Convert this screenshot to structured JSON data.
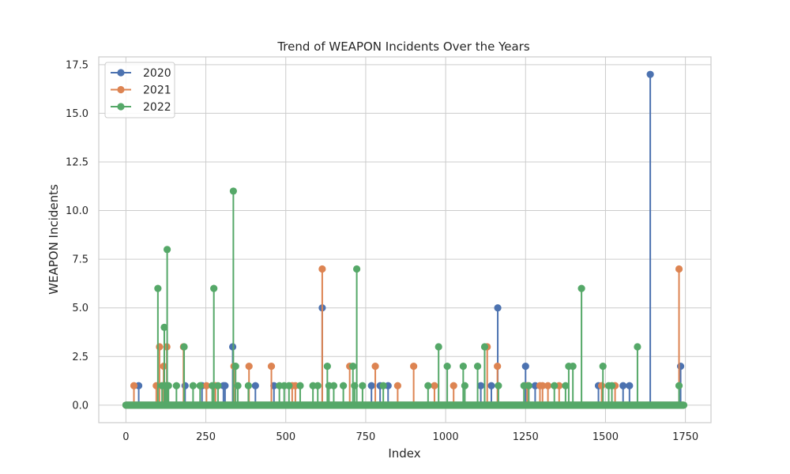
{
  "chart_data": {
    "type": "stem",
    "title": "Trend of WEAPON Incidents Over the Years",
    "xlabel": "Index",
    "ylabel": "WEAPON Incidents",
    "xlim": [
      -85,
      1830
    ],
    "ylim": [
      -0.9,
      17.9
    ],
    "xticks": [
      0,
      250,
      500,
      750,
      1000,
      1250,
      1500,
      1750
    ],
    "yticks": [
      0.0,
      2.5,
      5.0,
      7.5,
      10.0,
      12.5,
      15.0,
      17.5
    ],
    "ytick_labels": [
      "0.0",
      "2.5",
      "5.0",
      "7.5",
      "10.0",
      "12.5",
      "15.0",
      "17.5"
    ],
    "grid": true,
    "legend_position": "top-left",
    "x_range": [
      0,
      1745
    ],
    "baseline_value": 0,
    "series": [
      {
        "name": "2020",
        "color": "#4c72b0",
        "points": [
          [
            40,
            1
          ],
          [
            185,
            1
          ],
          [
            238,
            1
          ],
          [
            305,
            1
          ],
          [
            310,
            1
          ],
          [
            334,
            3
          ],
          [
            405,
            1
          ],
          [
            463,
            1
          ],
          [
            614,
            5
          ],
          [
            768,
            1
          ],
          [
            795,
            1
          ],
          [
            820,
            1
          ],
          [
            1110,
            1
          ],
          [
            1143,
            1
          ],
          [
            1163,
            5
          ],
          [
            1250,
            2
          ],
          [
            1280,
            1
          ],
          [
            1478,
            1
          ],
          [
            1555,
            1
          ],
          [
            1575,
            1
          ],
          [
            1640,
            17
          ],
          [
            1735,
            2
          ]
        ]
      },
      {
        "name": "2021",
        "color": "#dd8452",
        "points": [
          [
            25,
            1
          ],
          [
            95,
            1
          ],
          [
            105,
            3
          ],
          [
            118,
            2
          ],
          [
            128,
            3
          ],
          [
            180,
            3
          ],
          [
            252,
            1
          ],
          [
            280,
            1
          ],
          [
            338,
            2
          ],
          [
            385,
            2
          ],
          [
            455,
            2
          ],
          [
            520,
            1
          ],
          [
            530,
            1
          ],
          [
            614,
            7
          ],
          [
            700,
            2
          ],
          [
            780,
            2
          ],
          [
            850,
            1
          ],
          [
            900,
            2
          ],
          [
            965,
            1
          ],
          [
            1025,
            1
          ],
          [
            1130,
            3
          ],
          [
            1162,
            2
          ],
          [
            1255,
            1
          ],
          [
            1295,
            1
          ],
          [
            1303,
            1
          ],
          [
            1320,
            1
          ],
          [
            1355,
            1
          ],
          [
            1488,
            1
          ],
          [
            1530,
            1
          ],
          [
            1730,
            7
          ]
        ]
      },
      {
        "name": "2022",
        "color": "#55a868",
        "points": [
          [
            100,
            6
          ],
          [
            113,
            1
          ],
          [
            120,
            4
          ],
          [
            124,
            1
          ],
          [
            129,
            8
          ],
          [
            133,
            1
          ],
          [
            158,
            1
          ],
          [
            182,
            3
          ],
          [
            210,
            1
          ],
          [
            232,
            1
          ],
          [
            270,
            1
          ],
          [
            275,
            6
          ],
          [
            288,
            1
          ],
          [
            336,
            11
          ],
          [
            343,
            2
          ],
          [
            350,
            1
          ],
          [
            383,
            1
          ],
          [
            480,
            1
          ],
          [
            495,
            1
          ],
          [
            510,
            1
          ],
          [
            545,
            1
          ],
          [
            585,
            1
          ],
          [
            600,
            1
          ],
          [
            630,
            2
          ],
          [
            635,
            1
          ],
          [
            650,
            1
          ],
          [
            680,
            1
          ],
          [
            710,
            2
          ],
          [
            715,
            1
          ],
          [
            722,
            7
          ],
          [
            740,
            1
          ],
          [
            805,
            1
          ],
          [
            945,
            1
          ],
          [
            978,
            3
          ],
          [
            1005,
            2
          ],
          [
            1055,
            2
          ],
          [
            1060,
            1
          ],
          [
            1100,
            2
          ],
          [
            1122,
            3
          ],
          [
            1165,
            1
          ],
          [
            1245,
            1
          ],
          [
            1260,
            1
          ],
          [
            1340,
            1
          ],
          [
            1375,
            1
          ],
          [
            1385,
            2
          ],
          [
            1398,
            2
          ],
          [
            1425,
            6
          ],
          [
            1492,
            2
          ],
          [
            1510,
            1
          ],
          [
            1520,
            1
          ],
          [
            1600,
            3
          ],
          [
            1730,
            1
          ]
        ]
      }
    ]
  }
}
